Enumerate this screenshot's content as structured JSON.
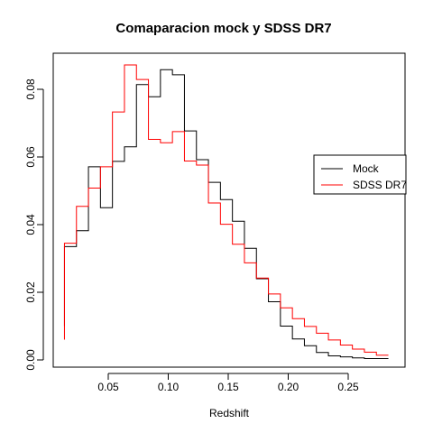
{
  "chart_data": {
    "type": "line",
    "title": "Comaparacion mock y SDSS DR7",
    "xlabel": "Redshift",
    "ylabel": "",
    "xlim": [
      0.0,
      0.3
    ],
    "ylim": [
      0.0,
      0.09
    ],
    "x_ticks": [
      {
        "value": 0.05,
        "label": "0.05"
      },
      {
        "value": 0.1,
        "label": "0.10"
      },
      {
        "value": 0.15,
        "label": "0.15"
      },
      {
        "value": 0.2,
        "label": "0.20"
      },
      {
        "value": 0.25,
        "label": "0.25"
      }
    ],
    "y_ticks": [
      {
        "value": 0.0,
        "label": "0.00"
      },
      {
        "value": 0.02,
        "label": "0.02"
      },
      {
        "value": 0.04,
        "label": "0.04"
      },
      {
        "value": 0.06,
        "label": "0.06"
      },
      {
        "value": 0.08,
        "label": "0.08"
      }
    ],
    "grid": false,
    "legend_position": "right",
    "bin_edges": [
      0.0135,
      0.0235,
      0.0335,
      0.0435,
      0.0535,
      0.0635,
      0.0735,
      0.0835,
      0.0935,
      0.1035,
      0.1135,
      0.1235,
      0.1335,
      0.1435,
      0.1535,
      0.1635,
      0.1735,
      0.1835,
      0.1935,
      0.2035,
      0.2135,
      0.2235,
      0.2335,
      0.2435,
      0.2535,
      0.2635,
      0.2735,
      0.2835
    ],
    "series": [
      {
        "name": "Mock",
        "color": "#000000",
        "start_value": 0.01,
        "values": [
          0.0335,
          0.0382,
          0.0571,
          0.045,
          0.0587,
          0.063,
          0.0814,
          0.0778,
          0.0858,
          0.0843,
          0.0677,
          0.0592,
          0.0525,
          0.0474,
          0.041,
          0.033,
          0.024,
          0.0172,
          0.01,
          0.0062,
          0.0042,
          0.0022,
          0.0012,
          0.0009,
          0.0006,
          0.0004,
          0.0004
        ]
      },
      {
        "name": "SDSS DR7",
        "color": "#ff0000",
        "start_value": 0.006,
        "values": [
          0.0345,
          0.0454,
          0.0508,
          0.0571,
          0.0733,
          0.0872,
          0.0829,
          0.0652,
          0.0642,
          0.0675,
          0.0588,
          0.0576,
          0.0464,
          0.0401,
          0.0342,
          0.0287,
          0.0242,
          0.0195,
          0.0154,
          0.0122,
          0.0099,
          0.0079,
          0.0059,
          0.0044,
          0.0032,
          0.0023,
          0.0014
        ]
      }
    ]
  }
}
